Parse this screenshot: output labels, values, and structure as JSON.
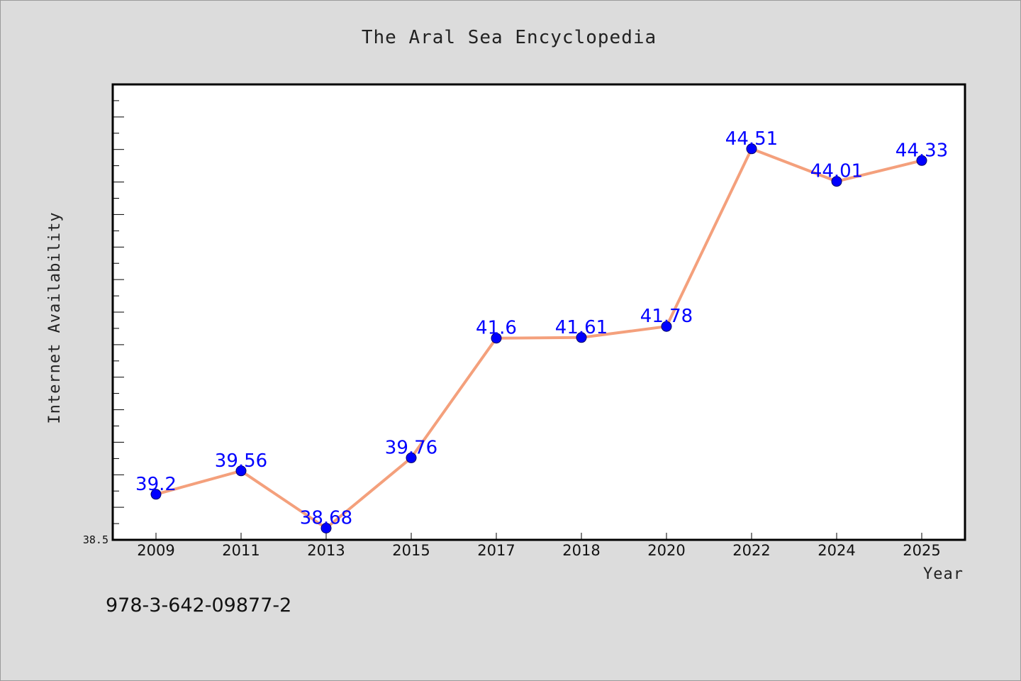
{
  "chart_data": {
    "type": "line",
    "title": "The Aral Sea Encyclopedia",
    "xlabel": "Year",
    "ylabel": "Internet Availability",
    "categories": [
      "2009",
      "2011",
      "2013",
      "2015",
      "2017",
      "2018",
      "2020",
      "2022",
      "2024",
      "2025"
    ],
    "series": [
      {
        "values": [
          39.2,
          39.56,
          38.68,
          39.76,
          41.6,
          41.61,
          41.78,
          44.51,
          44.01,
          44.33
        ],
        "labels": [
          "39.2",
          "39.56",
          "38.68",
          "39.76",
          "41.6",
          "41.61",
          "41.78",
          "44.51",
          "44.01",
          "44.33"
        ],
        "line_color": "#f4a07c",
        "marker_color": "#0000ff"
      }
    ],
    "ylim": [
      38.5,
      45.5
    ],
    "y_tick_label": "38.5",
    "grid": false,
    "legend": false
  },
  "footer": {
    "isbn": "978-3-642-09877-2"
  },
  "colors": {
    "background": "#dcdcdc",
    "plot_background": "#ffffff",
    "axis": "#000000"
  }
}
